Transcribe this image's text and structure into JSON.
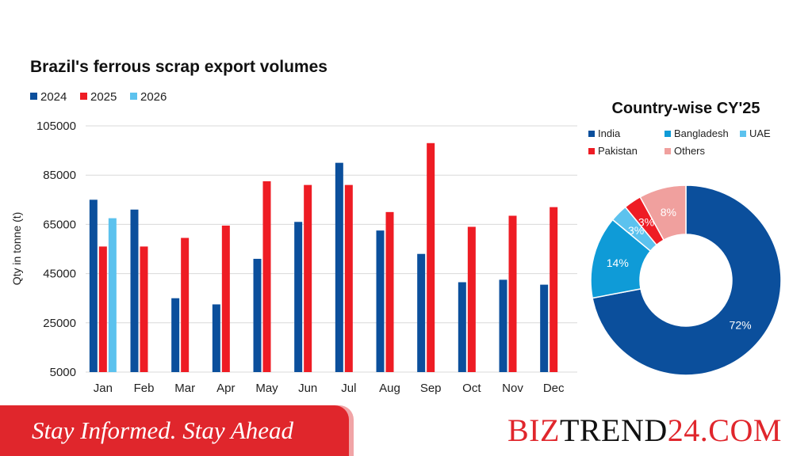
{
  "colors": {
    "s2024": "#0b4f9c",
    "s2025": "#ee1c24",
    "s2026": "#5cc2ee",
    "india": "#0b4f9c",
    "bangladesh": "#0f9bd7",
    "uae": "#5cc2ee",
    "pakistan": "#ee1c24",
    "others": "#f0a09e",
    "footer_red": "#e0262c"
  },
  "chart_data": [
    {
      "type": "bar",
      "title": "Brazil's ferrous scrap export volumes",
      "ylabel": "Qty in tonne (t)",
      "xlabel": "",
      "categories": [
        "Jan",
        "Feb",
        "Mar",
        "Apr",
        "May",
        "Jun",
        "Jul",
        "Aug",
        "Sep",
        "Oct",
        "Nov",
        "Dec"
      ],
      "series": [
        {
          "name": "2024",
          "values": [
            75000,
            71000,
            35000,
            32500,
            51000,
            66000,
            90000,
            62500,
            53000,
            41500,
            42500,
            40500
          ]
        },
        {
          "name": "2025",
          "values": [
            56000,
            56000,
            59500,
            64500,
            82500,
            81000,
            81000,
            70000,
            98000,
            64000,
            68500,
            72000
          ]
        },
        {
          "name": "2026",
          "values": [
            67500,
            null,
            null,
            null,
            null,
            null,
            null,
            null,
            null,
            null,
            null,
            null
          ]
        }
      ],
      "ylim": [
        5000,
        105000
      ],
      "yticks": [
        5000,
        25000,
        45000,
        65000,
        85000,
        105000
      ],
      "grid": true,
      "legend": "top-left"
    },
    {
      "type": "pie",
      "title": "Country-wise CY'25",
      "donut": true,
      "slices": [
        {
          "label": "India",
          "value": 72,
          "display": "72%"
        },
        {
          "label": "Bangladesh",
          "value": 14,
          "display": "14%"
        },
        {
          "label": "UAE",
          "value": 3,
          "display": "3%"
        },
        {
          "label": "Pakistan",
          "value": 3,
          "display": "3%"
        },
        {
          "label": "Others",
          "value": 8,
          "display": "8%"
        }
      ],
      "legend": "top"
    }
  ],
  "footer": {
    "tagline": "Stay Informed. Stay Ahead",
    "brand_a": "BIZ",
    "brand_b": "TREND",
    "brand_c": "24.COM"
  }
}
